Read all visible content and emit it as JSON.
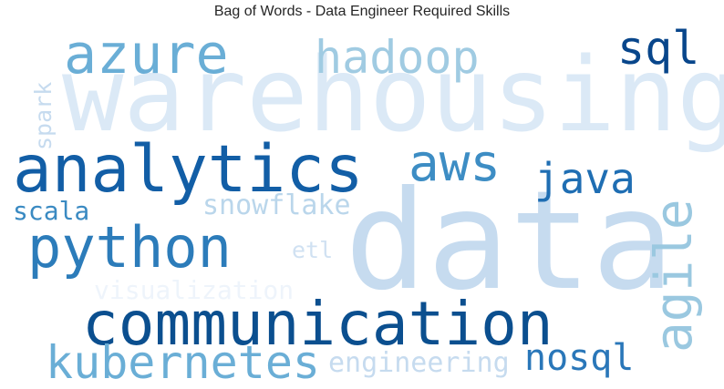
{
  "chart_data": {
    "type": "wordcloud",
    "title": "Bag of Words - Data Engineer Required Skills",
    "colormap": "Blues",
    "background": "#ffffff",
    "words": [
      {
        "text": "data",
        "weight": 1.0,
        "color": "#c6dbef"
      },
      {
        "text": "warehousing",
        "weight": 0.86,
        "color": "#dbe9f6"
      },
      {
        "text": "analytics",
        "weight": 0.71,
        "color": "#125ea6"
      },
      {
        "text": "communication",
        "weight": 0.66,
        "color": "#0b4f8f"
      },
      {
        "text": "python",
        "weight": 0.62,
        "color": "#2c7cba"
      },
      {
        "text": "azure",
        "weight": 0.6,
        "color": "#6aaed6"
      },
      {
        "text": "aws",
        "weight": 0.48,
        "color": "#3d8dc4"
      },
      {
        "text": "agile",
        "weight": 0.47,
        "color": "#9ac8e0"
      },
      {
        "text": "kubernetes",
        "weight": 0.47,
        "color": "#6aaed6"
      },
      {
        "text": "hadoop",
        "weight": 0.42,
        "color": "#a0cbe2"
      },
      {
        "text": "sql",
        "weight": 0.4,
        "color": "#08468b"
      },
      {
        "text": "java",
        "weight": 0.39,
        "color": "#1f6eb3"
      },
      {
        "text": "nosql",
        "weight": 0.34,
        "color": "#2a77b9"
      },
      {
        "text": "snowflake",
        "weight": 0.25,
        "color": "#bad6eb"
      },
      {
        "text": "engineering",
        "weight": 0.25,
        "color": "#c6dbef"
      },
      {
        "text": "visualization",
        "weight": 0.24,
        "color": "#eef4fb"
      },
      {
        "text": "scala",
        "weight": 0.22,
        "color": "#3a8ac2"
      },
      {
        "text": "spark",
        "weight": 0.2,
        "color": "#c6dbef"
      },
      {
        "text": "etl",
        "weight": 0.2,
        "color": "#d0e1f2"
      }
    ]
  }
}
